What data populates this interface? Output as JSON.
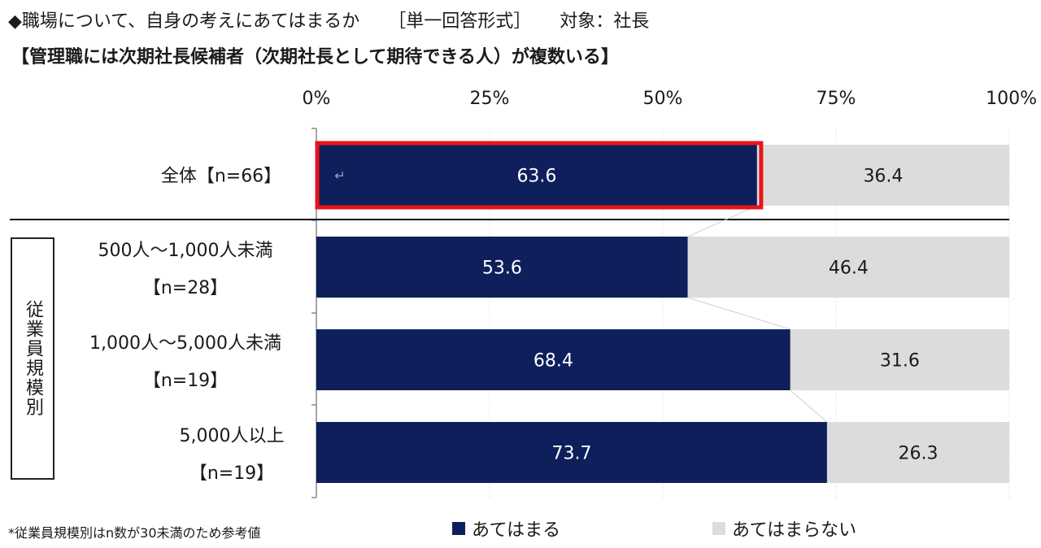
{
  "header": {
    "question": "◆職場について、自身の考えにあてはまるか",
    "format": "［単一回答形式］",
    "target": "対象：社長",
    "subtitle": "【管理職には次期社長候補者（次期社長として期待できる人）が複数いる】"
  },
  "colors": {
    "yes": "#0f1f5c",
    "no": "#dcdcdc",
    "highlight": "#e8141b"
  },
  "group_label": "従業員規模別",
  "footnote": "*従業員規模別はn数が30未満のため参考値",
  "chart_data": {
    "type": "bar",
    "orientation": "horizontal",
    "stacked": true,
    "percent": true,
    "categories": [
      [
        "全体【n=66】"
      ],
      [
        "500人～1,000人未満",
        "【n=28】"
      ],
      [
        "1,000人～5,000人未満",
        "【n=19】"
      ],
      [
        "5,000人以上",
        "【n=19】"
      ]
    ],
    "series": [
      {
        "name": "あてはまる",
        "values": [
          63.6,
          53.6,
          68.4,
          73.7
        ]
      },
      {
        "name": "あてはまらない",
        "values": [
          36.4,
          46.4,
          31.6,
          26.3
        ]
      }
    ],
    "xticks": [
      "0%",
      "25%",
      "50%",
      "75%",
      "100%"
    ],
    "xlim": [
      0,
      100
    ],
    "legend": "bottom",
    "grid": true,
    "highlight_category": 0
  }
}
